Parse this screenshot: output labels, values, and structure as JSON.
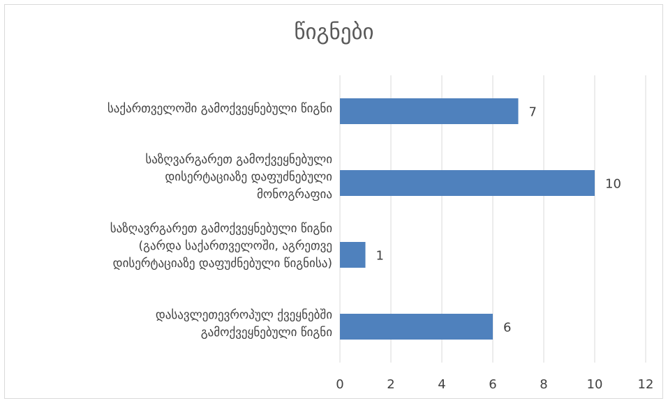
{
  "chart_data": {
    "type": "bar",
    "orientation": "horizontal",
    "title": "წიგნები",
    "categories": [
      "საქართველოში გამოქვეყნებული წიგნი",
      "საზღვარგარეთ გამოქვეყნებული\nდისერტაციაზე დაფუძნებული\nმონოგრაფია",
      "საზღავრგარეთ გამოქვეყნებული წიგნი\n(გარდა საქართველოში, აგრეთვე\nდისერტაციაზე დაფუძნებული წიგნისა)",
      "დასავლეთევროპულ ქვეყნებში\nგამოქვეყნებული წიგნი"
    ],
    "values": [
      7,
      10,
      1,
      6
    ],
    "data_labels": [
      "7",
      "10",
      "1",
      "6"
    ],
    "xlim": [
      0,
      12
    ],
    "x_ticks": [
      "0",
      "2",
      "4",
      "6",
      "8",
      "10",
      "12"
    ],
    "grid": "vertical",
    "legend": "none",
    "bar_color": "#4f81bd",
    "grid_color": "#d9d9d9",
    "text_color": "#404040"
  }
}
